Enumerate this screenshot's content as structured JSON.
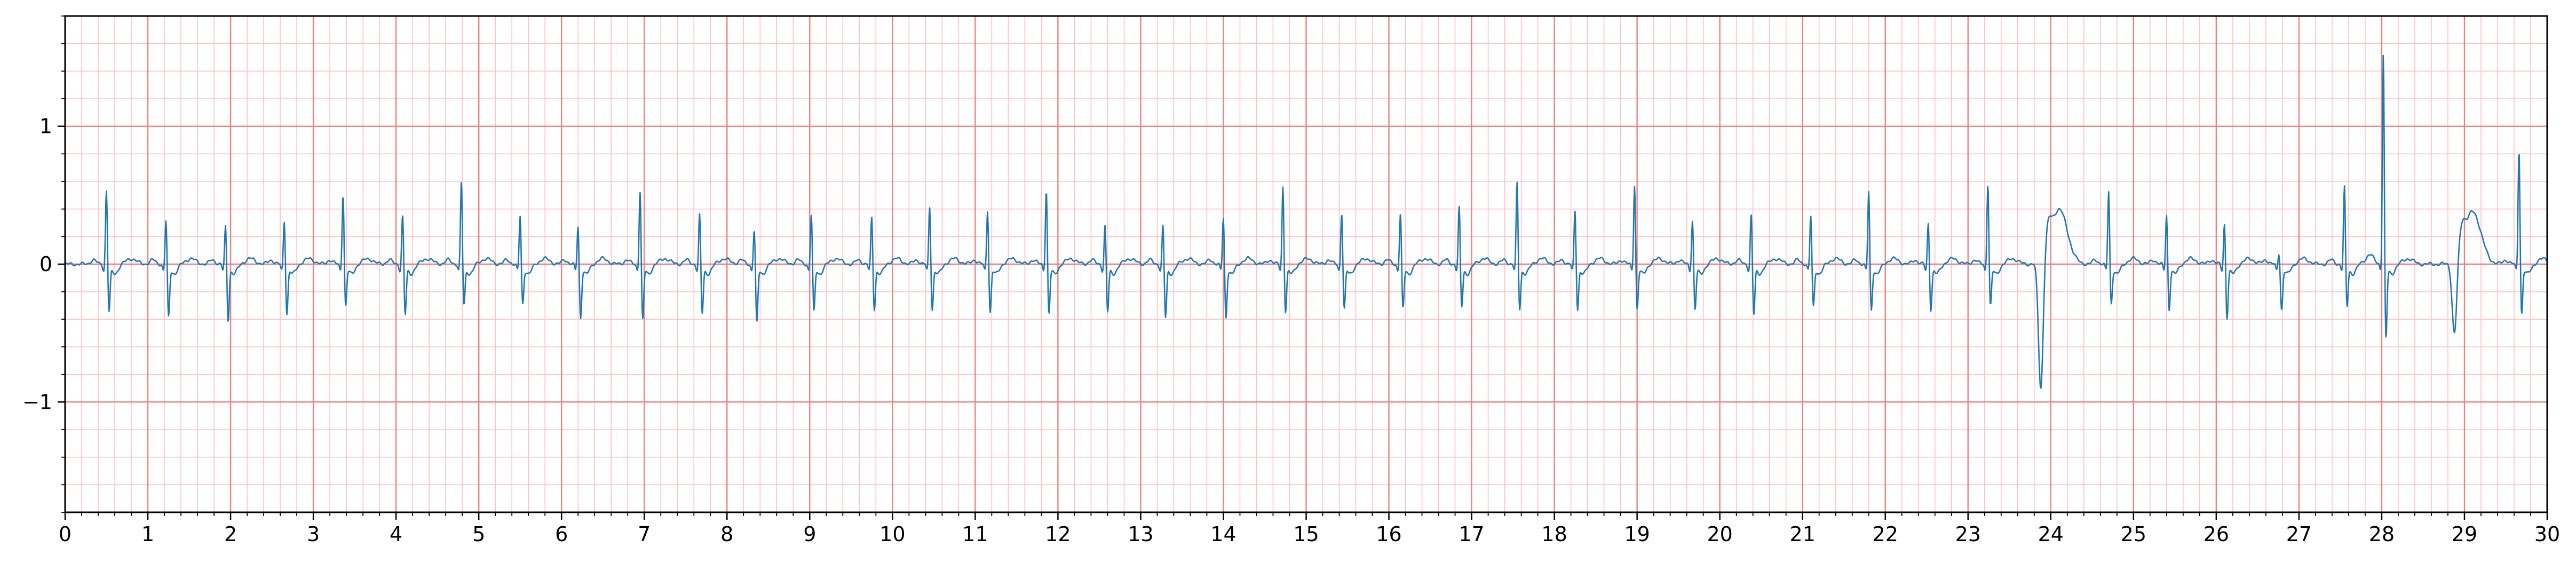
{
  "chart_data": {
    "type": "line",
    "title": "",
    "xlabel": "",
    "ylabel": "",
    "xlim": [
      0,
      30
    ],
    "ylim": [
      -1.8,
      1.8
    ],
    "x_ticks": [
      "0",
      "1",
      "2",
      "3",
      "4",
      "5",
      "6",
      "7",
      "8",
      "9",
      "10",
      "11",
      "12",
      "13",
      "14",
      "15",
      "16",
      "17",
      "18",
      "19",
      "20",
      "21",
      "22",
      "23",
      "24",
      "25",
      "26",
      "27",
      "28",
      "29",
      "30"
    ],
    "y_ticks": [
      {
        "value": 1,
        "label": "1"
      },
      {
        "value": 0,
        "label": "0"
      },
      {
        "value": -1,
        "label": "−1"
      }
    ],
    "grid": {
      "major_x_step": 1,
      "minor_x_step": 0.2,
      "major_y_step": 1,
      "minor_y_step": 0.2
    },
    "colors": {
      "line": "#1f77b4",
      "grid_major": "#f08080",
      "grid_minor": "#ffc0c0",
      "axes": "#000000",
      "background": "#ffffff"
    },
    "series": [
      {
        "beats": [
          {
            "t": 0.5,
            "r": 0.56,
            "s": -0.34,
            "neg": 0
          },
          {
            "t": 1.22,
            "r": 0.34,
            "s": -0.38,
            "neg": 0
          },
          {
            "t": 1.94,
            "r": 0.3,
            "s": -0.4,
            "neg": 0
          },
          {
            "t": 2.65,
            "r": 0.34,
            "s": -0.35,
            "neg": 0
          },
          {
            "t": 3.36,
            "r": 0.54,
            "s": -0.3,
            "neg": 0
          },
          {
            "t": 4.08,
            "r": 0.38,
            "s": -0.36,
            "neg": 0
          },
          {
            "t": 4.79,
            "r": 0.62,
            "s": -0.3,
            "neg": 0
          },
          {
            "t": 5.5,
            "r": 0.37,
            "s": -0.28,
            "neg": 0
          },
          {
            "t": 6.2,
            "r": 0.3,
            "s": -0.38,
            "neg": 0
          },
          {
            "t": 6.95,
            "r": 0.56,
            "s": -0.4,
            "neg": 0
          },
          {
            "t": 7.67,
            "r": 0.38,
            "s": -0.35,
            "neg": 0
          },
          {
            "t": 8.33,
            "r": 0.28,
            "s": -0.42,
            "neg": 0
          },
          {
            "t": 9.02,
            "r": 0.38,
            "s": -0.34,
            "neg": 0
          },
          {
            "t": 9.75,
            "r": 0.36,
            "s": -0.32,
            "neg": 0
          },
          {
            "t": 10.45,
            "r": 0.44,
            "s": -0.32,
            "neg": 0
          },
          {
            "t": 11.15,
            "r": 0.42,
            "s": -0.34,
            "neg": 0
          },
          {
            "t": 11.86,
            "r": 0.57,
            "s": -0.36,
            "neg": 0
          },
          {
            "t": 12.57,
            "r": 0.3,
            "s": -0.34,
            "neg": 0
          },
          {
            "t": 13.27,
            "r": 0.3,
            "s": -0.38,
            "neg": 0
          },
          {
            "t": 14.0,
            "r": 0.36,
            "s": -0.38,
            "neg": 0
          },
          {
            "t": 14.72,
            "r": 0.59,
            "s": -0.34,
            "neg": 0
          },
          {
            "t": 15.43,
            "r": 0.4,
            "s": -0.32,
            "neg": 0
          },
          {
            "t": 16.14,
            "r": 0.39,
            "s": -0.32,
            "neg": 0
          },
          {
            "t": 16.85,
            "r": 0.43,
            "s": -0.3,
            "neg": 0
          },
          {
            "t": 17.55,
            "r": 0.61,
            "s": -0.32,
            "neg": 0
          },
          {
            "t": 18.25,
            "r": 0.41,
            "s": -0.32,
            "neg": 0
          },
          {
            "t": 18.97,
            "r": 0.6,
            "s": -0.32,
            "neg": 0
          },
          {
            "t": 19.67,
            "r": 0.34,
            "s": -0.32,
            "neg": 0
          },
          {
            "t": 20.38,
            "r": 0.39,
            "s": -0.36,
            "neg": 0
          },
          {
            "t": 21.1,
            "r": 0.37,
            "s": -0.3,
            "neg": 0
          },
          {
            "t": 21.8,
            "r": 0.55,
            "s": -0.33,
            "neg": 0
          },
          {
            "t": 22.52,
            "r": 0.32,
            "s": -0.32,
            "neg": 0
          },
          {
            "t": 23.24,
            "r": 0.61,
            "s": -0.3,
            "neg": 0
          },
          {
            "t": 23.88,
            "r": 0.0,
            "s": -0.94,
            "neg": 1
          },
          {
            "t": 24.7,
            "r": 0.55,
            "s": -0.28,
            "neg": 0
          },
          {
            "t": 25.4,
            "r": 0.38,
            "s": -0.32,
            "neg": 0
          },
          {
            "t": 26.1,
            "r": 0.32,
            "s": -0.38,
            "neg": 0
          },
          {
            "t": 26.76,
            "r": 0.1,
            "s": -0.32,
            "neg": 0
          },
          {
            "t": 27.55,
            "r": 0.58,
            "s": -0.3,
            "neg": 0
          },
          {
            "t": 28.02,
            "r": 1.56,
            "s": -0.56,
            "neg": 0
          },
          {
            "t": 28.88,
            "r": 0.0,
            "s": -0.54,
            "neg": 1
          },
          {
            "t": 29.66,
            "r": 0.87,
            "s": -0.36,
            "neg": 0
          }
        ],
        "waves": [
          {
            "t": 24.1,
            "a": 0.4,
            "w": 0.1
          },
          {
            "t": 29.1,
            "a": 0.38,
            "w": 0.1
          }
        ]
      }
    ]
  }
}
